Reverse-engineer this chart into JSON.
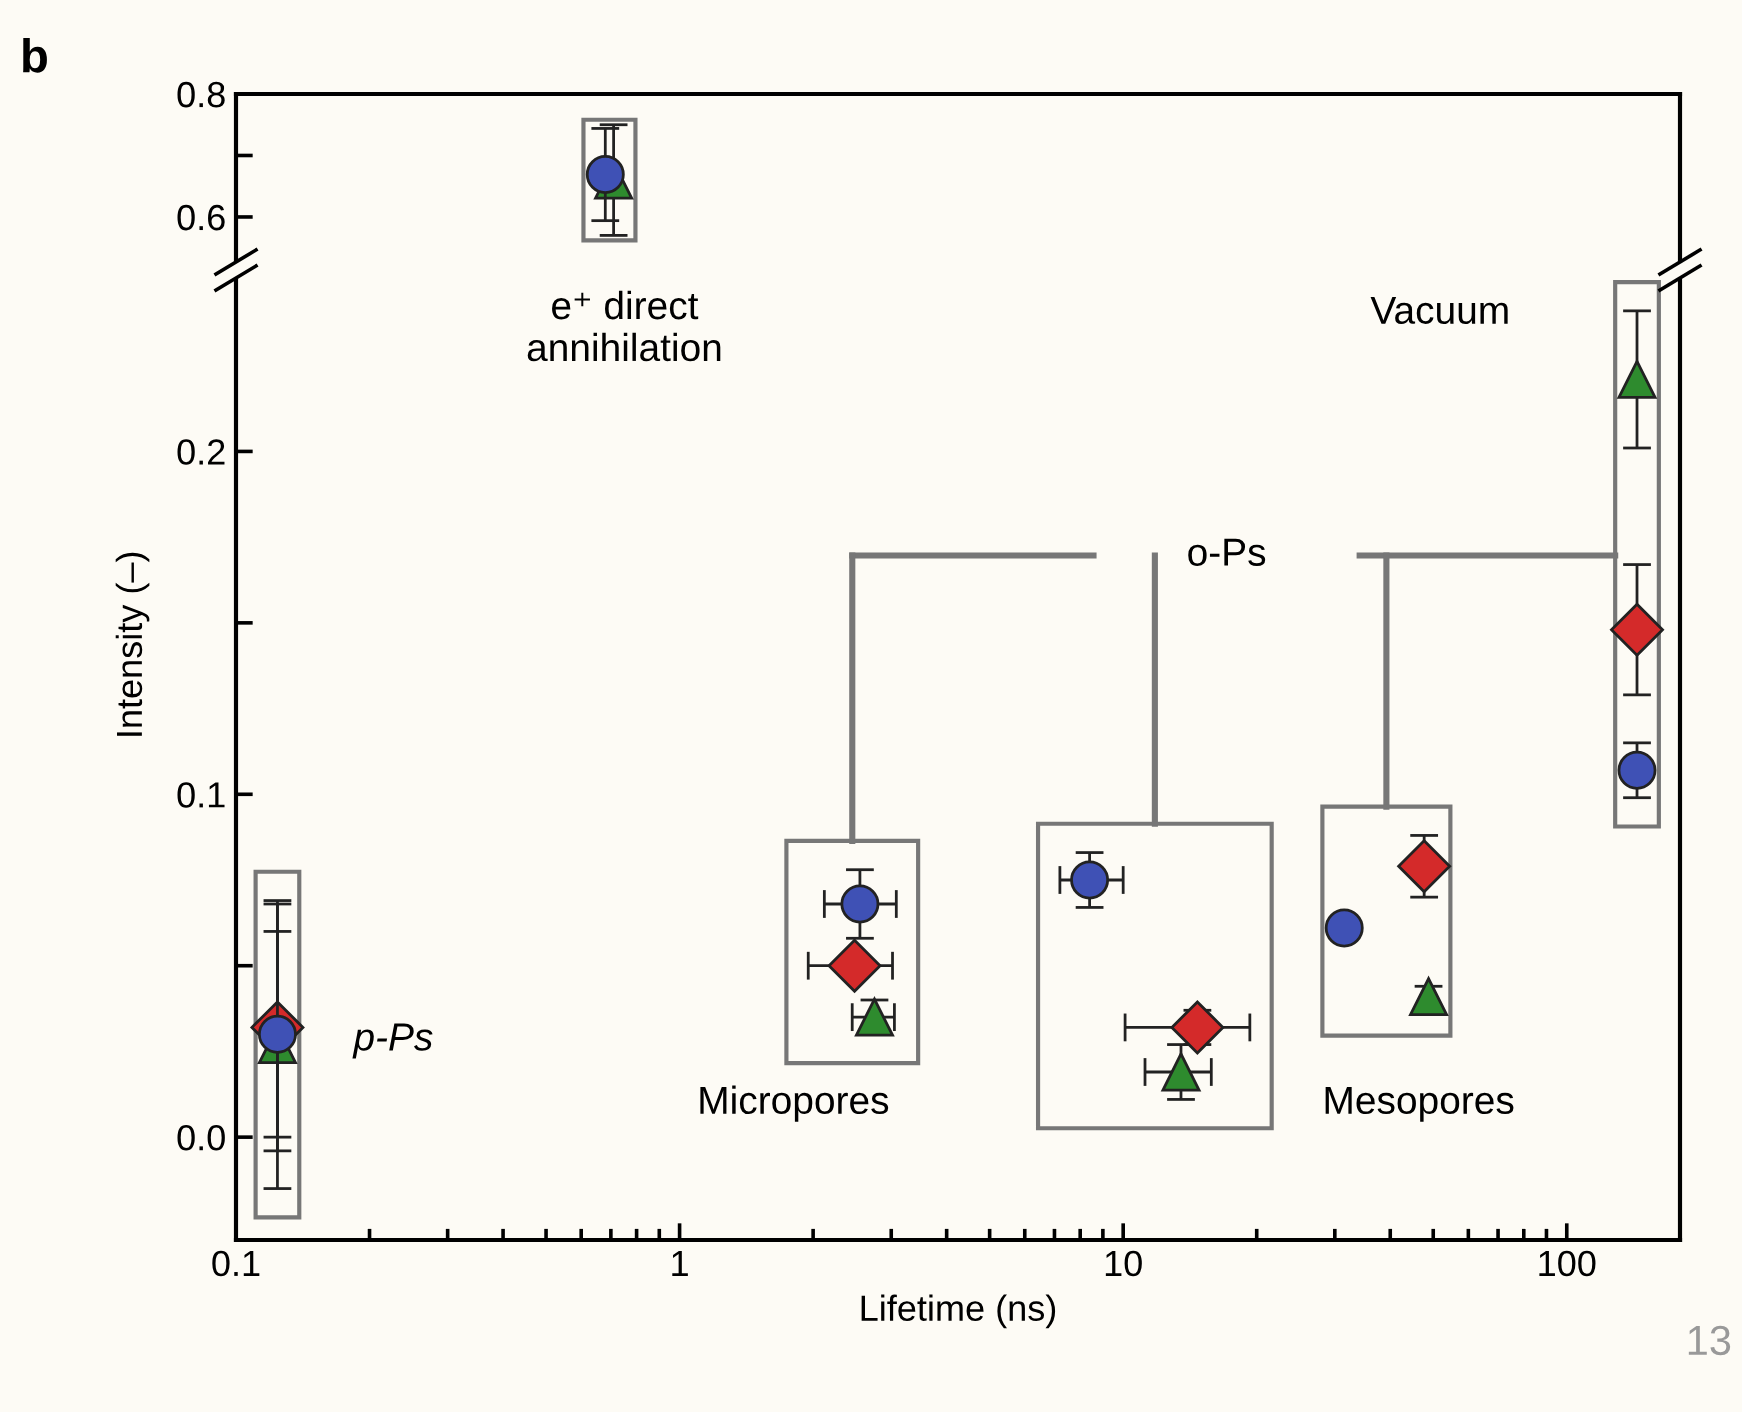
{
  "chart_data": [
    {
      "type": "scatter",
      "ylim": [
        0.53,
        0.8
      ],
      "yticks": [
        {
          "value": 0.6,
          "label": "0.6"
        },
        {
          "value": 0.7,
          "label": null
        },
        {
          "value": 0.8,
          "label": "0.8"
        }
      ],
      "xlim": [
        0.1,
        180
      ],
      "log": "x",
      "tick_labels": "y",
      "grid": false,
      "annotations": [
        "b"
      ],
      "series": [
        {
          "color": "#3f51b5",
          "marker": "circle",
          "x": [
            0.68
          ],
          "values": [
            0.669
          ],
          "errors": [
            0.075
          ]
        },
        {
          "color": "#2e8b2e",
          "marker": "triangle",
          "x": [
            0.71
          ],
          "values": [
            0.66
          ],
          "errors": [
            0.09
          ]
        }
      ]
    },
    {
      "type": "scatter",
      "ylim": [
        -0.03,
        0.25
      ],
      "yticks": [
        {
          "value": 0,
          "label": "0.0"
        },
        {
          "value": 0.05,
          "label": null
        },
        {
          "value": 0.1,
          "label": "0.1"
        },
        {
          "value": 0.15,
          "label": null
        },
        {
          "value": 0.2,
          "label": "0.2"
        }
      ],
      "xlim": [
        0.1,
        180
      ],
      "xticks": [
        {
          "value": 0.1,
          "label": "0.1"
        },
        {
          "value": 1,
          "label": "1"
        },
        {
          "value": 10,
          "label": "10"
        },
        {
          "value": 100,
          "label": "100"
        }
      ],
      "log": "x",
      "grid": false,
      "xlabel": "Lifetime (ns)",
      "ylabel": "Intensity (–)",
      "annotations": [
        "13",
        "e⁺ direct\nannihilation",
        "p-Ps",
        "Micropores",
        "Mesopores",
        "Vacuum",
        "o-Ps"
      ],
      "series": [
        {
          "color": "#3f51b5",
          "marker": "circle",
          "x": [
            0.124,
            2.55,
            8.4,
            31.5,
            144
          ],
          "values": [
            0.03,
            0.068,
            0.075,
            0.061,
            0.107
          ],
          "errors": [
            0.03,
            0.01,
            0.008,
            null,
            0.008
          ],
          "xerrors": [
            null,
            [
              2.12,
              3.08
            ],
            [
              7.2,
              10
            ],
            null,
            null
          ]
        },
        {
          "color": "#d42a2a",
          "marker": "diamond",
          "x": [
            0.124,
            2.48,
            14.7,
            47.7,
            144
          ],
          "values": [
            0.032,
            0.05,
            0.032,
            0.079,
            0.148
          ],
          "errors": [
            0.036,
            null,
            0.005,
            0.009,
            0.019
          ],
          "xerrors": [
            null,
            [
              1.95,
              3.02
            ],
            [
              10.1,
              19.3
            ],
            null,
            null
          ]
        },
        {
          "color": "#2e8b2e",
          "marker": "triangle",
          "x": [
            0.124,
            2.75,
            13.5,
            48.8,
            144
          ],
          "values": [
            0.027,
            0.035,
            0.019,
            0.041,
            0.221
          ],
          "errors": [
            0.042,
            0.005,
            0.008,
            0.003,
            0.02
          ],
          "xerrors": [
            null,
            [
              2.45,
              3.05
            ],
            [
              11.2,
              15.8
            ],
            null,
            null
          ]
        }
      ]
    }
  ]
}
